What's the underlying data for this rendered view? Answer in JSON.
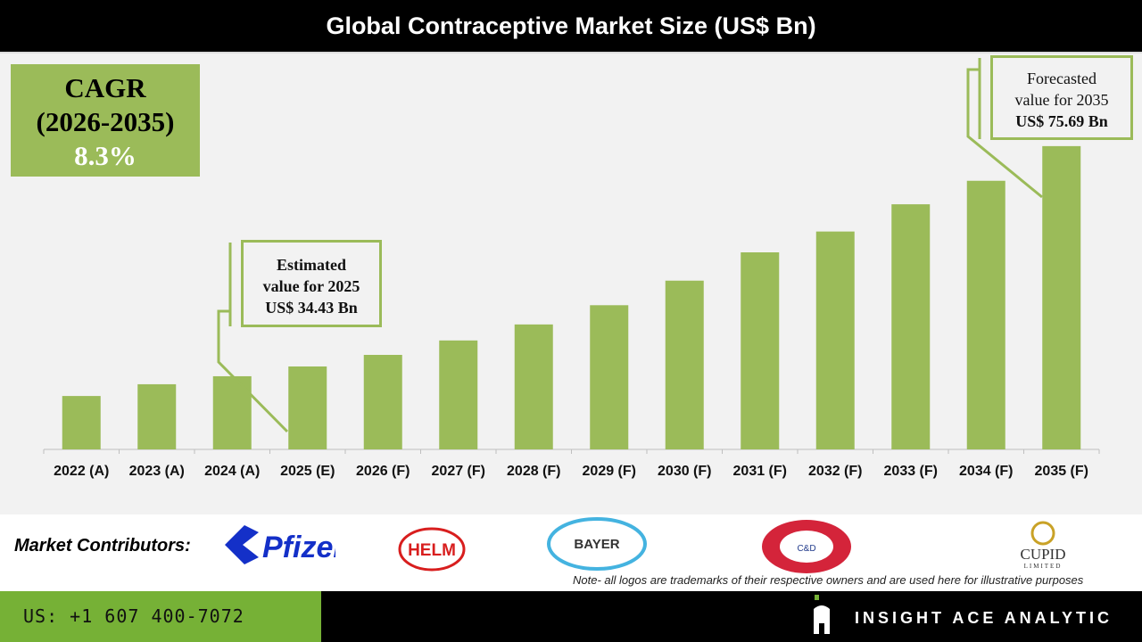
{
  "title": "Global Contraceptive Market Size (US$ Bn)",
  "cagr": {
    "label": "CAGR",
    "period": "(2026-2035)",
    "value": "8.3%"
  },
  "callouts": {
    "c2025": {
      "l1": "Estimated",
      "l2": "value for 2025",
      "l3": "US$ 34.43 Bn"
    },
    "c2035": {
      "l1": "Forecasted",
      "l2": "value for 2035",
      "l3": "US$ 75.69 Bn"
    }
  },
  "chart_data": {
    "type": "bar",
    "title": "Global Contraceptive Market Size (US$ Bn)",
    "xlabel": "",
    "ylabel": "",
    "categories": [
      "2022 (A)",
      "2023 (A)",
      "2024 (A)",
      "2025 (E)",
      "2026 (F)",
      "2027 (F)",
      "2028 (F)",
      "2029 (F)",
      "2030 (F)",
      "2031 (F)",
      "2032 (F)",
      "2033 (F)",
      "2034 (F)",
      "2035 (F)"
    ],
    "values": [
      28.9,
      31.1,
      32.6,
      34.43,
      36.6,
      39.3,
      42.3,
      45.9,
      50.5,
      55.8,
      59.7,
      64.8,
      69.2,
      75.69
    ],
    "ylim": [
      18.9,
      92.7
    ],
    "grid": false,
    "y_axis_shown": false,
    "bar_color": "#9bbb59"
  },
  "contributors": {
    "label": "Market Contributors:",
    "logos": [
      "Pfizer",
      "HELM",
      "BAYER",
      "CHURCH & DWIGHT CO., INC.",
      "CUPID LIMITED"
    ],
    "note": "Note- all logos are trademarks of their respective owners and are used here for illustrative purposes"
  },
  "footer": {
    "phone": "US: +1 607 400-7072",
    "brand": "INSIGHT ACE ANALYTIC"
  },
  "colors": {
    "green": "#9bbb59",
    "footer_green": "#76b136"
  }
}
